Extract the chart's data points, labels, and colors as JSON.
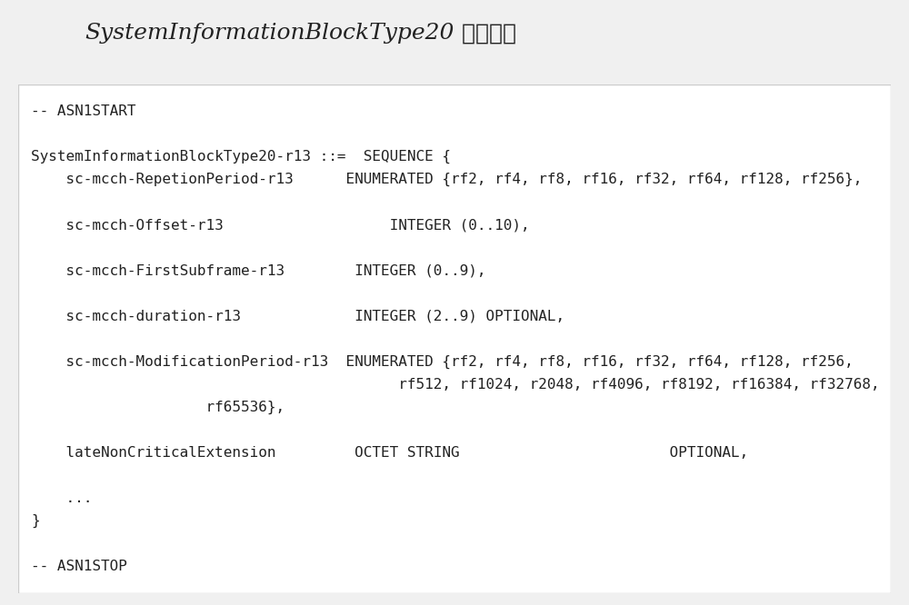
{
  "title_italic": "SystemInformationBlockType20",
  "title_normal": " 信息元素",
  "bg_color": "#f0f0f0",
  "box_color": "#ffffff",
  "box_edge_color": "#cccccc",
  "text_color": "#222222",
  "figsize": [
    10.0,
    6.66
  ],
  "dpi": 100,
  "title_fontsize": 18,
  "code_fontsize": 11.5,
  "lines": [
    "-- ASN1START",
    "",
    "SystemInformationBlockType20-r13 ::=  SEQUENCE {",
    "    sc-mcch-RepetionPeriod-r13      ENUMERATED {rf2, rf4, rf8, rf16, rf32, rf64, rf128, rf256},",
    "",
    "    sc-mcch-Offset-r13                   INTEGER (0..10),",
    "",
    "    sc-mcch-FirstSubframe-r13        INTEGER (0..9),",
    "",
    "    sc-mcch-duration-r13             INTEGER (2..9) OPTIONAL,",
    "",
    "    sc-mcch-ModificationPeriod-r13  ENUMERATED {rf2, rf4, rf8, rf16, rf32, rf64, rf128, rf256,",
    "                                          rf512, rf1024, r2048, rf4096, rf8192, rf16384, rf32768,",
    "                    rf65536},",
    "",
    "    lateNonCriticalExtension         OCTET STRING                        OPTIONAL,",
    "",
    "    ...",
    "}",
    "",
    "-- ASN1STOP"
  ]
}
